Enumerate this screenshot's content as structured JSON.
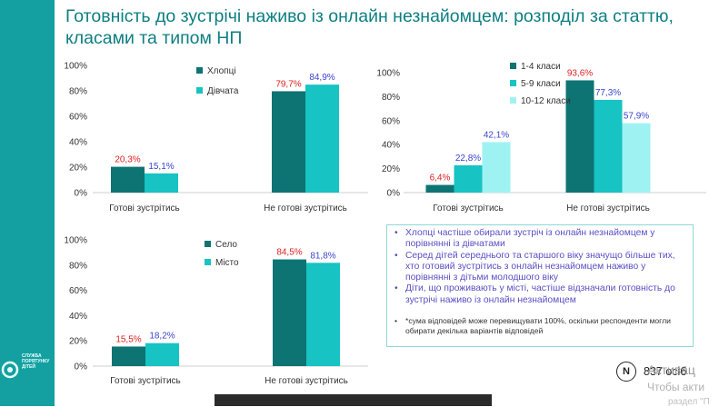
{
  "title": {
    "line1": "Готовність до зустрічі наживо із онлайн незнайомцем: розподіл за статтю,",
    "line2": "класами та типом НП"
  },
  "logo": {
    "icon": "circle-logo-icon",
    "text_lines": [
      "СЛУЖБА",
      "ПОРЯТУНКУ",
      "ДІТЕЙ"
    ]
  },
  "chart_data": [
    {
      "type": "bar",
      "categories": [
        "Готові зустрітись",
        "Не готові зустрітись"
      ],
      "series": [
        {
          "name": "Хлопці",
          "values": [
            20.3,
            79.7
          ],
          "color": "#0e7373",
          "label_color": "#e02020"
        },
        {
          "name": "Дівчата",
          "values": [
            15.1,
            84.9
          ],
          "color": "#17c3c3",
          "label_color": "#3b44cf"
        }
      ],
      "value_labels": [
        [
          "20,3%",
          "79,7%"
        ],
        [
          "15,1%",
          "84,9%"
        ]
      ],
      "yticks": [
        "0%",
        "20%",
        "40%",
        "60%",
        "80%",
        "100%"
      ],
      "ylim": [
        0,
        100
      ],
      "legend": "top-left"
    },
    {
      "type": "bar",
      "categories": [
        "Готові зустрітись",
        "Не готові зустрітись"
      ],
      "series": [
        {
          "name": "1-4 класи",
          "values": [
            6.4,
            93.6
          ],
          "color": "#0e7373",
          "label_color": "#e02020"
        },
        {
          "name": "5-9 класи",
          "values": [
            22.8,
            77.3
          ],
          "color": "#17c3c3",
          "label_color": "#3b44cf"
        },
        {
          "name": "10-12 класи",
          "values": [
            42.1,
            57.9
          ],
          "color": "#9ff2f2",
          "label_color": "#3b44cf"
        }
      ],
      "value_labels": [
        [
          "6,4%",
          "93,6%"
        ],
        [
          "22,8%",
          "77,3%"
        ],
        [
          "42,1%",
          "57,9%"
        ]
      ],
      "yticks": [
        "0%",
        "20%",
        "40%",
        "60%",
        "80%",
        "100%"
      ],
      "ylim": [
        0,
        100
      ],
      "legend": "top-left"
    },
    {
      "type": "bar",
      "categories": [
        "Готові зустрітись",
        "Не готові зустрітись"
      ],
      "series": [
        {
          "name": "Село",
          "values": [
            15.5,
            84.5
          ],
          "color": "#0e7373",
          "label_color": "#e02020"
        },
        {
          "name": "Місто",
          "values": [
            18.2,
            81.8
          ],
          "color": "#17c3c3",
          "label_color": "#3b44cf"
        }
      ],
      "value_labels": [
        [
          "15,5%",
          "84,5%"
        ],
        [
          "18,2%",
          "81,8%"
        ]
      ],
      "yticks": [
        "0%",
        "20%",
        "40%",
        "60%",
        "80%",
        "100%"
      ],
      "ylim": [
        0,
        100
      ],
      "legend": "top-left"
    }
  ],
  "notes": {
    "items": [
      "Хлопці частіше обирали зустріч із онлайн незнайомцем у порівнянні із дівчатами",
      "Серед дітей середнього та старшого віку значущо більше тих, хто готовий зустрітись з онлайн незнайомцем наживо у порівнянні з дітьми молодшого віку",
      "Діти, що проживають у місті, частіше відзначали готовність до зустрічі наживо із онлайн незнайомцем"
    ],
    "footnote": "*сума відповідей може перевищувати 100%, оскільки респонденти могли обирати декілька варіантів відповідей"
  },
  "sample": {
    "badge": "N",
    "text": "837 осіб"
  },
  "watermark": {
    "line1": "Активац",
    "line2": "Чтобы акти",
    "line3": "раздел \"П"
  }
}
